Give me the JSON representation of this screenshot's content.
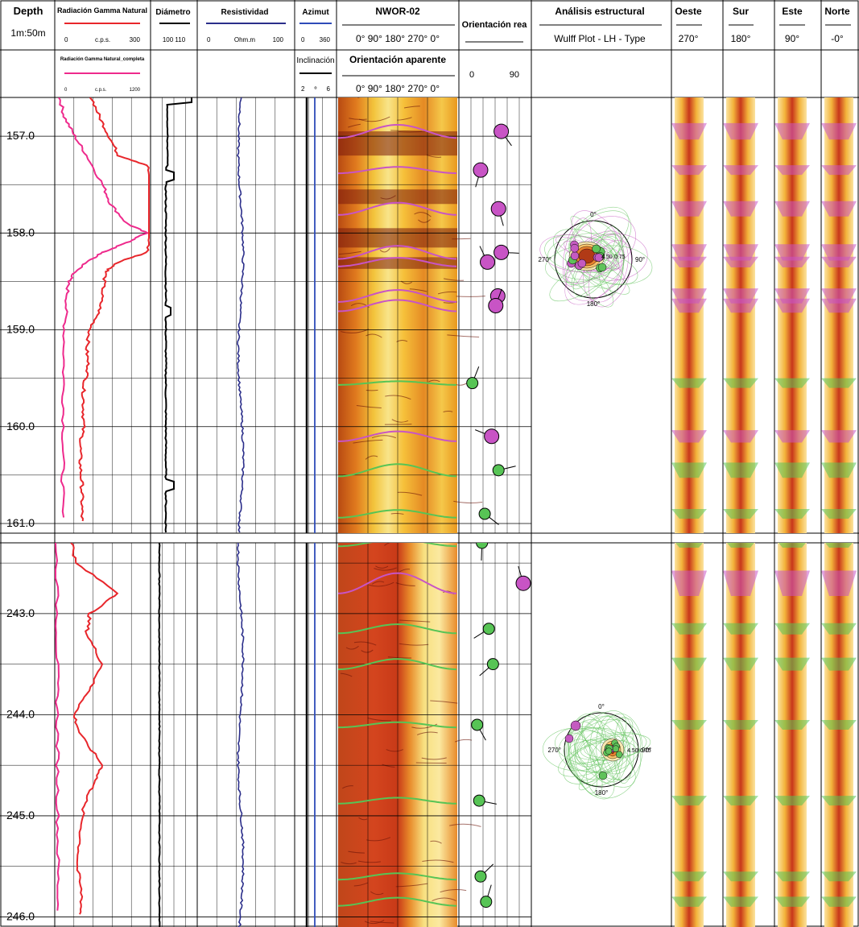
{
  "header": {
    "depth_title": "Depth",
    "scale": "1m:50m",
    "gamma": {
      "title": "Radiación Gamma Natural",
      "min": "0",
      "unit": "c.p.s.",
      "max": "300",
      "color": "#e8262b"
    },
    "gamma_full": {
      "title": "Radiación Gamma Natural_completa",
      "min": "0",
      "unit": "c.p.s.",
      "max": "1200",
      "color": "#ee2a8c"
    },
    "diametro": {
      "title": "Diámetro",
      "range": "100 110",
      "color": "#000000"
    },
    "resistividad": {
      "title": "Resistividad",
      "min": "0",
      "unit": "Ohm.m",
      "max": "100",
      "color": "#2b2e8a"
    },
    "azimut": {
      "title": "Azimut",
      "min": "0",
      "max": "360",
      "color": "#2e4bb8"
    },
    "inclinacion": {
      "title": "Inclinación",
      "min": "2",
      "mid": "º",
      "max": "6",
      "color": "#000000"
    },
    "well": "NWOR-02",
    "angles": "0°  90°  180° 270° 0°",
    "orient_aparente": "Orientación aparente",
    "angles2": "0°  90°  180° 270° 0°",
    "orient_real": "Orientación rea",
    "orient_real_min": "0",
    "orient_real_max": "90",
    "analisis": "Análisis estructural",
    "wulff": "Wulff Plot - LH - Type",
    "views": [
      {
        "name": "Oeste",
        "deg": "270°"
      },
      {
        "name": "Sur",
        "deg": "180°"
      },
      {
        "name": "Este",
        "deg": "90°"
      },
      {
        "name": "Norte",
        "deg": "-0°"
      }
    ]
  },
  "stereonet": {
    "north": "0°",
    "east_label": "90°",
    "west": "270°",
    "south": "180°",
    "num_a": "4.50",
    "num_b": "0.75"
  },
  "chart_data": {
    "type": "line",
    "panels": [
      {
        "depth_labels": [
          "157.0",
          "158.0",
          "159.0",
          "160.0",
          "161.0"
        ],
        "depth_range": [
          156.6,
          161.1
        ],
        "gamma_cps": [
          [
            156.6,
            115
          ],
          [
            156.8,
            140
          ],
          [
            157.0,
            170
          ],
          [
            157.2,
            200
          ],
          [
            157.3,
            290
          ],
          [
            157.5,
            300
          ],
          [
            158.0,
            300
          ],
          [
            158.2,
            290
          ],
          [
            158.3,
            200
          ],
          [
            158.4,
            160
          ],
          [
            158.6,
            150
          ],
          [
            158.8,
            140
          ],
          [
            159.0,
            110
          ],
          [
            159.2,
            100
          ],
          [
            159.4,
            105
          ],
          [
            159.6,
            90
          ],
          [
            159.8,
            90
          ],
          [
            160.0,
            90
          ],
          [
            160.2,
            80
          ],
          [
            160.4,
            80
          ],
          [
            160.6,
            85
          ],
          [
            160.8,
            85
          ],
          [
            161.0,
            85
          ]
        ],
        "gamma_full_cps": [
          [
            156.6,
            60
          ],
          [
            156.8,
            120
          ],
          [
            157.0,
            250
          ],
          [
            157.2,
            400
          ],
          [
            157.5,
            600
          ],
          [
            157.7,
            700
          ],
          [
            157.9,
            900
          ],
          [
            158.0,
            1150
          ],
          [
            158.1,
            900
          ],
          [
            158.2,
            600
          ],
          [
            158.3,
            400
          ],
          [
            158.4,
            260
          ],
          [
            158.5,
            170
          ],
          [
            158.7,
            150
          ],
          [
            159.0,
            120
          ],
          [
            159.5,
            110
          ],
          [
            160.0,
            110
          ],
          [
            160.5,
            100
          ],
          [
            161.0,
            95
          ]
        ],
        "dips": [
          {
            "depth": 156.95,
            "dip": 58,
            "color": "#c854c5"
          },
          {
            "depth": 157.35,
            "dip": 28,
            "color": "#c854c5"
          },
          {
            "depth": 157.75,
            "dip": 54,
            "color": "#c854c5"
          },
          {
            "depth": 158.2,
            "dip": 58,
            "color": "#c854c5"
          },
          {
            "depth": 158.3,
            "dip": 38,
            "color": "#c854c5"
          },
          {
            "depth": 158.65,
            "dip": 53,
            "color": "#c854c5"
          },
          {
            "depth": 158.75,
            "dip": 50,
            "color": "#c854c5"
          },
          {
            "depth": 159.55,
            "dip": 16,
            "color": "#57c455"
          },
          {
            "depth": 160.1,
            "dip": 44,
            "color": "#c854c5"
          },
          {
            "depth": 160.45,
            "dip": 54,
            "color": "#57c455"
          },
          {
            "depth": 160.9,
            "dip": 34,
            "color": "#57c455"
          }
        ]
      },
      {
        "depth_labels": [
          "243.0",
          "244.0",
          "245.0",
          "246.0"
        ],
        "depth_range": [
          242.3,
          246.1
        ],
        "gamma_cps": [
          [
            242.3,
            55
          ],
          [
            242.5,
            65
          ],
          [
            242.8,
            200
          ],
          [
            243.0,
            110
          ],
          [
            243.2,
            100
          ],
          [
            243.5,
            150
          ],
          [
            243.8,
            100
          ],
          [
            244.0,
            60
          ],
          [
            244.2,
            80
          ],
          [
            244.5,
            150
          ],
          [
            244.7,
            120
          ],
          [
            244.9,
            90
          ],
          [
            245.2,
            80
          ],
          [
            245.5,
            70
          ],
          [
            245.8,
            85
          ],
          [
            246.0,
            80
          ]
        ],
        "gamma_full_cps": [
          [
            242.3,
            20
          ],
          [
            243.0,
            28
          ],
          [
            243.5,
            30
          ],
          [
            244.0,
            32
          ],
          [
            244.5,
            35
          ],
          [
            245.0,
            38
          ],
          [
            245.5,
            40
          ],
          [
            246.0,
            42
          ]
        ],
        "dips": [
          {
            "depth": 242.3,
            "dip": 30,
            "color": "#57c455"
          },
          {
            "depth": 242.7,
            "dip": 90,
            "color": "#c854c5"
          },
          {
            "depth": 243.15,
            "dip": 40,
            "color": "#57c455"
          },
          {
            "depth": 243.5,
            "dip": 46,
            "color": "#57c455"
          },
          {
            "depth": 244.1,
            "dip": 23,
            "color": "#57c455"
          },
          {
            "depth": 244.85,
            "dip": 26,
            "color": "#57c455"
          },
          {
            "depth": 245.6,
            "dip": 28,
            "color": "#57c455"
          },
          {
            "depth": 245.85,
            "dip": 36,
            "color": "#57c455"
          }
        ]
      }
    ]
  }
}
